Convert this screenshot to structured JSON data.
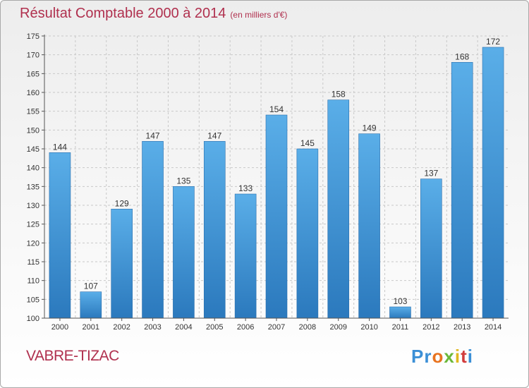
{
  "chart_data": {
    "type": "bar",
    "title": "Résultat Comptable 2000 à 2014",
    "subtitle": "(en milliers d'€)",
    "categories": [
      "2000",
      "2001",
      "2002",
      "2003",
      "2004",
      "2005",
      "2006",
      "2007",
      "2008",
      "2009",
      "2010",
      "2011",
      "2012",
      "2013",
      "2014"
    ],
    "values": [
      144,
      107,
      129,
      147,
      135,
      147,
      133,
      154,
      145,
      158,
      149,
      103,
      137,
      168,
      172
    ],
    "ylim": [
      100,
      175
    ],
    "yticks": [
      100,
      105,
      110,
      115,
      120,
      125,
      130,
      135,
      140,
      145,
      150,
      155,
      160,
      165,
      170,
      175
    ],
    "grid": true,
    "bar_color": "#3a8fd4"
  },
  "place_name": "VABRE-TIZAC",
  "logo": {
    "letters": [
      "Pr",
      "o",
      "x",
      "i",
      "t",
      "i"
    ],
    "colors": [
      "#3b8fd6",
      "#e8731f",
      "#6bb83a",
      "#e0b81e",
      "#d23c3c",
      "#3b8fd6"
    ]
  }
}
